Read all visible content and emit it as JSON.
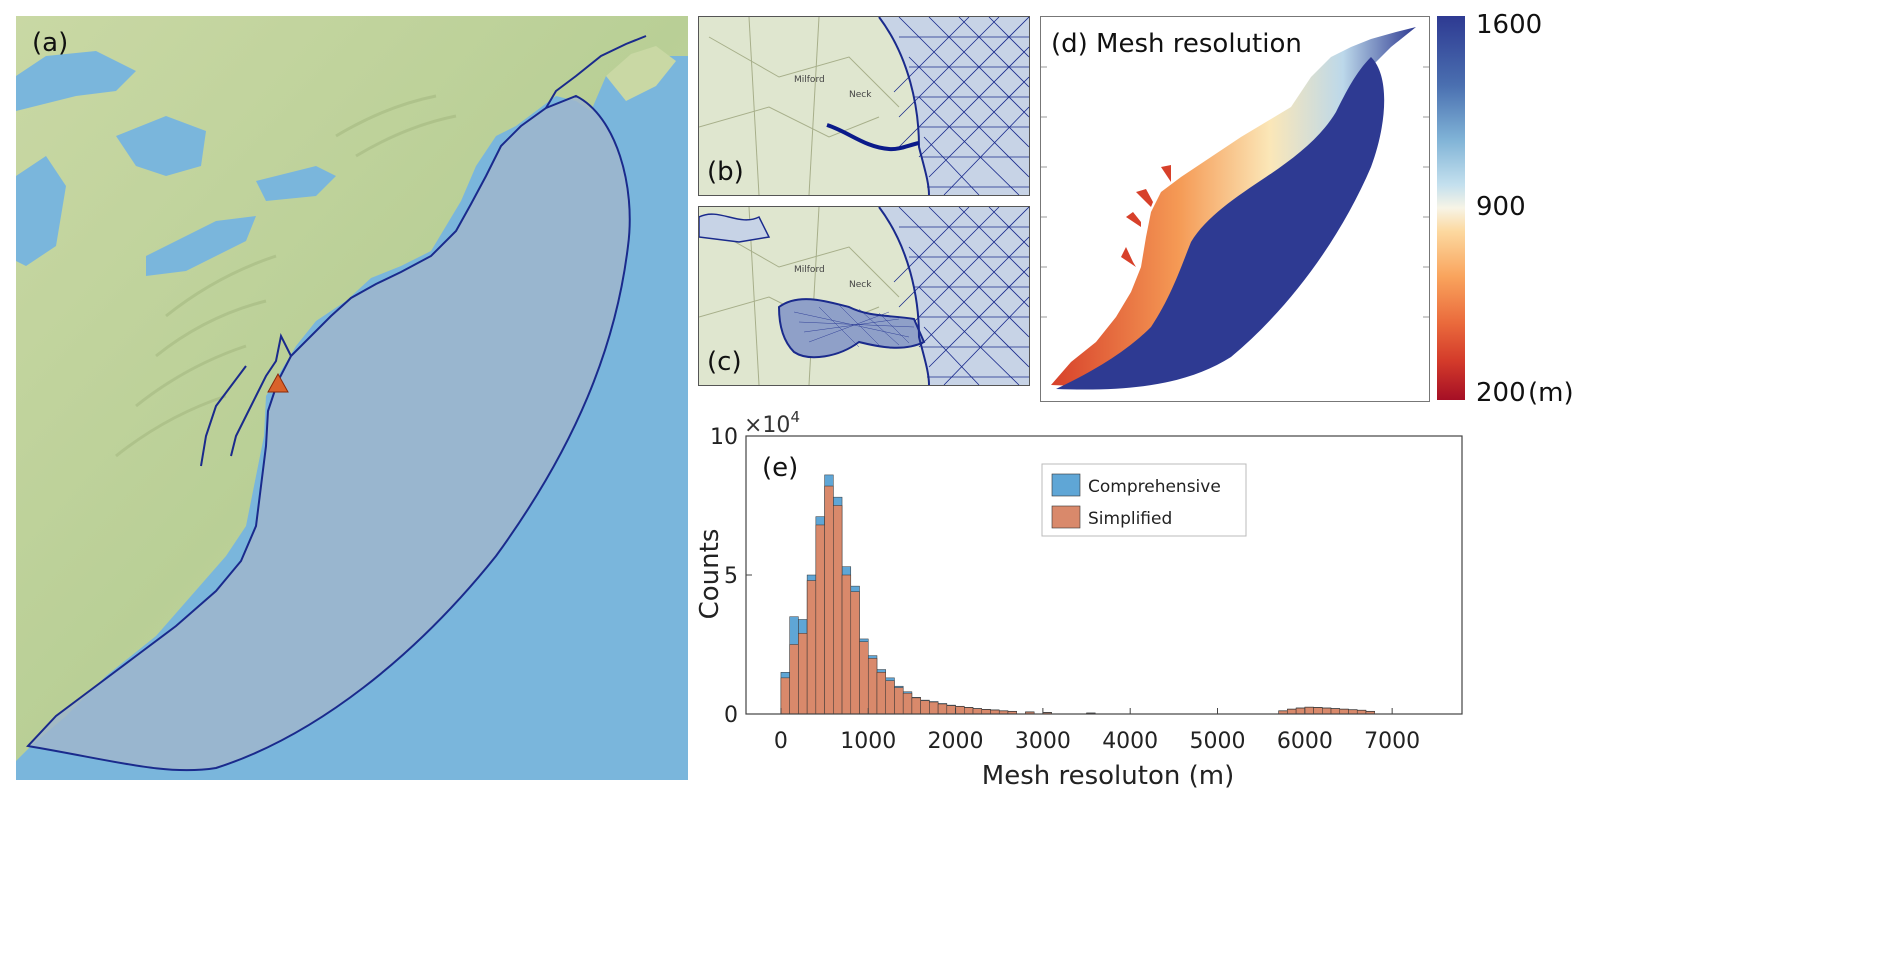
{
  "panels": {
    "a": {
      "label": "(a)"
    },
    "b": {
      "label": "(b)",
      "map_words": [
        "Milford",
        "Neck"
      ]
    },
    "c": {
      "label": "(c)",
      "map_words": [
        "Milford",
        "Neck"
      ]
    },
    "d": {
      "label": "(d) Mesh resolution",
      "colorbar": {
        "ticks": [
          "1600",
          "900",
          "200"
        ],
        "unit": "(m)",
        "colormap": "red-yellow-white-blue",
        "range": [
          200,
          1600
        ]
      }
    }
  },
  "colors": {
    "land": "#cdd9a8",
    "ocean": "#7ab6dc",
    "domain_fill": "#9fb6cc",
    "boundary": "#1a2a8c",
    "comprehensive": "#5fa6d6",
    "simplified": "#d9896b",
    "mesh_high": "#2e3a92",
    "marker": "#d9622b"
  },
  "chart_data": {
    "type": "bar",
    "title": "(e)",
    "xlabel": "Mesh resoluton (m)",
    "ylabel": "Counts",
    "y_multiplier": "×10",
    "y_exponent": "4",
    "xlim": [
      -400,
      7800
    ],
    "ylim": [
      0,
      10
    ],
    "xticks": [
      "0",
      "1000",
      "2000",
      "3000",
      "4000",
      "5000",
      "6000",
      "7000"
    ],
    "xtick_values": [
      0,
      1000,
      2000,
      3000,
      4000,
      5000,
      6000,
      7000
    ],
    "yticks": [
      "0",
      "5",
      "10"
    ],
    "ytick_values": [
      0,
      5,
      10
    ],
    "bin_width": 100,
    "legend_position": "top-right",
    "series": [
      {
        "name": "Comprehensive",
        "bin_starts": [
          0,
          100,
          200,
          300,
          400,
          500,
          600,
          700,
          800,
          900,
          1000,
          1100,
          1200,
          1300,
          1400,
          1500,
          1600,
          1700,
          1800,
          1900,
          2000,
          2100,
          2200,
          2300,
          2400,
          2500,
          2600,
          2800,
          3000,
          3500,
          5700,
          5800,
          5900,
          6000,
          6100,
          6200,
          6300,
          6400,
          6500,
          6600,
          6700
        ],
        "values": [
          1.5,
          3.5,
          3.4,
          5.0,
          7.1,
          8.6,
          7.8,
          5.3,
          4.6,
          2.7,
          2.1,
          1.6,
          1.3,
          1.0,
          0.8,
          0.6,
          0.5,
          0.45,
          0.38,
          0.32,
          0.28,
          0.24,
          0.2,
          0.17,
          0.15,
          0.12,
          0.1,
          0.08,
          0.06,
          0.04,
          0.12,
          0.18,
          0.22,
          0.25,
          0.24,
          0.22,
          0.2,
          0.18,
          0.16,
          0.14,
          0.1
        ]
      },
      {
        "name": "Simplified",
        "bin_starts": [
          0,
          100,
          200,
          300,
          400,
          500,
          600,
          700,
          800,
          900,
          1000,
          1100,
          1200,
          1300,
          1400,
          1500,
          1600,
          1700,
          1800,
          1900,
          2000,
          2100,
          2200,
          2300,
          2400,
          2500,
          2600,
          2800,
          3000,
          3500,
          5700,
          5800,
          5900,
          6000,
          6100,
          6200,
          6300,
          6400,
          6500,
          6600,
          6700
        ],
        "values": [
          1.3,
          2.5,
          2.9,
          4.8,
          6.8,
          8.2,
          7.5,
          5.0,
          4.4,
          2.6,
          2.0,
          1.5,
          1.2,
          0.95,
          0.75,
          0.58,
          0.48,
          0.43,
          0.36,
          0.3,
          0.27,
          0.23,
          0.19,
          0.16,
          0.14,
          0.11,
          0.09,
          0.07,
          0.05,
          0.03,
          0.11,
          0.17,
          0.21,
          0.24,
          0.23,
          0.21,
          0.19,
          0.17,
          0.15,
          0.13,
          0.09
        ]
      }
    ]
  }
}
